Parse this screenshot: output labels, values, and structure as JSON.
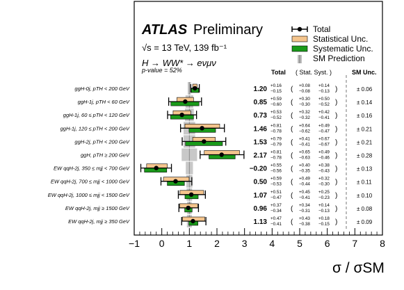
{
  "chart_data": {
    "type": "forest",
    "experiment": "ATLAS",
    "label": "Preliminary",
    "energy_line": "√s = 13 TeV, 139 fb⁻¹",
    "process_line": "H → WW* → eνμν",
    "pvalue_text": "p-value = 52%",
    "xlabel": "σ / σSM",
    "xlim": [
      -1,
      8
    ],
    "xticks": [
      -1,
      0,
      1,
      2,
      3,
      4,
      5,
      6,
      7,
      8
    ],
    "legend": [
      {
        "name": "Total",
        "kind": "total"
      },
      {
        "name": "Statistical Unc.",
        "kind": "stat",
        "color": "#f5c58d"
      },
      {
        "name": "Systematic Unc.",
        "kind": "syst",
        "color": "#1a9a1a"
      },
      {
        "name": "SM Prediction",
        "kind": "sm",
        "color": "#bdbdbd"
      }
    ],
    "column_headers": {
      "total": "Total",
      "stat_syst": "( Stat.  Syst. )",
      "sm": "SM Unc."
    },
    "rows": [
      {
        "label": "ggH-0j, pTH < 200 GeV",
        "value": 1.2,
        "tot_up": "+0.16",
        "tot_dn": "−0.15",
        "stat_up": "+0.08",
        "stat_dn": "−0.08",
        "syst_up": "+0.14",
        "syst_dn": "−0.13",
        "sm_unc": "± 0.06"
      },
      {
        "label": "ggH-1j, pTH < 60 GeV",
        "value": 0.85,
        "tot_up": "+0.59",
        "tot_dn": "−0.60",
        "stat_up": "+0.30",
        "stat_dn": "−0.30",
        "syst_up": "+0.50",
        "syst_dn": "−0.52",
        "sm_unc": "± 0.14"
      },
      {
        "label": "ggH-1j, 60 ≤ pTH < 120 GeV",
        "value": 0.73,
        "tot_up": "+0.53",
        "tot_dn": "−0.52",
        "stat_up": "+0.32",
        "stat_dn": "−0.32",
        "syst_up": "+0.42",
        "syst_dn": "−0.41",
        "sm_unc": "± 0.16"
      },
      {
        "label": "ggH-1j, 120 ≤ pTH < 200 GeV",
        "value": 1.46,
        "tot_up": "+0.81",
        "tot_dn": "−0.78",
        "stat_up": "+0.64",
        "stat_dn": "−0.62",
        "syst_up": "+0.49",
        "syst_dn": "−0.47",
        "sm_unc": "± 0.21"
      },
      {
        "label": "ggH-2j, pTH < 200 GeV",
        "value": 1.53,
        "tot_up": "+0.79",
        "tot_dn": "−0.79",
        "stat_up": "+0.41",
        "stat_dn": "−0.41",
        "syst_up": "+0.67",
        "syst_dn": "−0.67",
        "sm_unc": "± 0.21"
      },
      {
        "label": "ggH, pTH ≥ 200 GeV",
        "value": 2.17,
        "tot_up": "+0.81",
        "tot_dn": "−0.78",
        "stat_up": "+0.65",
        "stat_dn": "−0.63",
        "syst_up": "+0.49",
        "syst_dn": "−0.46",
        "sm_unc": "± 0.28"
      },
      {
        "label": "EW qqH-2j, 350 ≤ mjj < 700 GeV",
        "value": -0.2,
        "tot_up": "+0.55",
        "tot_dn": "−0.56",
        "stat_up": "+0.40",
        "stat_dn": "−0.35",
        "syst_up": "+0.38",
        "syst_dn": "−0.43",
        "sm_unc": "± 0.13"
      },
      {
        "label": "EW qqH-2j, 700 ≤ mjj < 1000 GeV",
        "value": 0.5,
        "tot_up": "+0.59",
        "tot_dn": "−0.53",
        "stat_up": "+0.49",
        "stat_dn": "−0.44",
        "syst_up": "+0.32",
        "syst_dn": "−0.30",
        "sm_unc": "± 0.11"
      },
      {
        "label": "EW qqH-2j, 1000 ≤ mjj < 1500 GeV",
        "value": 1.07,
        "tot_up": "+0.51",
        "tot_dn": "−0.47",
        "stat_up": "+0.45",
        "stat_dn": "−0.41",
        "syst_up": "+0.25",
        "syst_dn": "−0.23",
        "sm_unc": "± 0.10"
      },
      {
        "label": "EW qqH-2j, mjj ≥ 1500 GeV",
        "value": 0.96,
        "tot_up": "+0.37",
        "tot_dn": "−0.34",
        "stat_up": "+0.34",
        "stat_dn": "−0.31",
        "syst_up": "+0.14",
        "syst_dn": "−0.13",
        "sm_unc": "± 0.08"
      },
      {
        "label": "EW qqH-2j, mjj ≥ 350 GeV",
        "value": 1.13,
        "tot_up": "+0.47",
        "tot_dn": "−0.41",
        "stat_up": "+0.43",
        "stat_dn": "−0.38",
        "syst_up": "+0.18",
        "syst_dn": "−0.15",
        "sm_unc": "± 0.09"
      }
    ]
  }
}
